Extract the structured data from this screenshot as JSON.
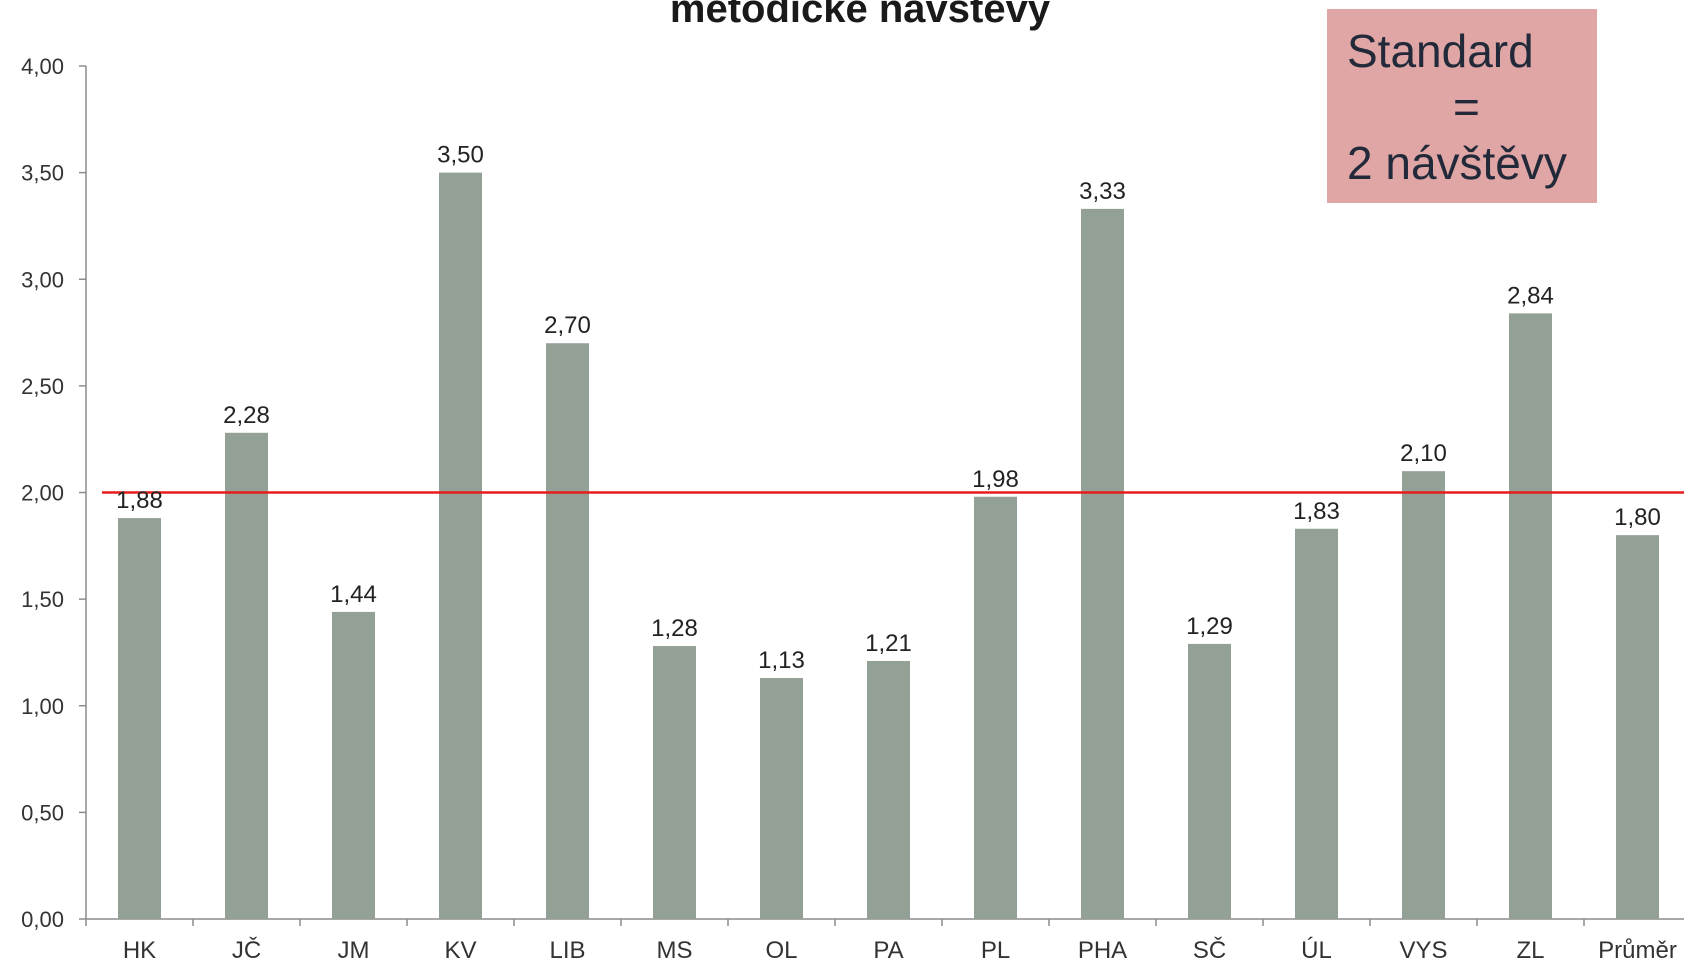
{
  "chart_data": {
    "type": "bar",
    "title": "metodické návštěvy",
    "categories": [
      "HK",
      "JČ",
      "JM",
      "KV",
      "LIB",
      "MS",
      "OL",
      "PA",
      "PL",
      "PHA",
      "SČ",
      "ÚL",
      "VYS",
      "ZL",
      "Průměr"
    ],
    "values": [
      1.88,
      2.28,
      1.44,
      3.5,
      2.7,
      1.28,
      1.13,
      1.21,
      1.98,
      3.33,
      1.29,
      1.83,
      2.1,
      2.84,
      1.8
    ],
    "value_labels": [
      "1,88",
      "2,28",
      "1,44",
      "3,50",
      "2,70",
      "1,28",
      "1,13",
      "1,21",
      "1,98",
      "3,33",
      "1,29",
      "1,83",
      "2,10",
      "2,84",
      "1,80"
    ],
    "ylim": [
      0,
      4
    ],
    "yticks": [
      0,
      0.5,
      1,
      1.5,
      2,
      2.5,
      3,
      3.5,
      4
    ],
    "ytick_labels": [
      "0,00",
      "0,50",
      "1,00",
      "1,50",
      "2,00",
      "2,50",
      "3,00",
      "3,50",
      "4,00"
    ],
    "reference_line": {
      "value": 2.0
    },
    "xlabel": "",
    "ylabel": "",
    "grid": false
  },
  "annotation": {
    "line1": "Standard",
    "line2": "=",
    "line3": "2 návštěvy"
  },
  "colors": {
    "bar": "#92a096",
    "reference_line": "#e81c1c",
    "axis": "#8c8c8c",
    "annotation_bg": "#e0a5a5"
  }
}
